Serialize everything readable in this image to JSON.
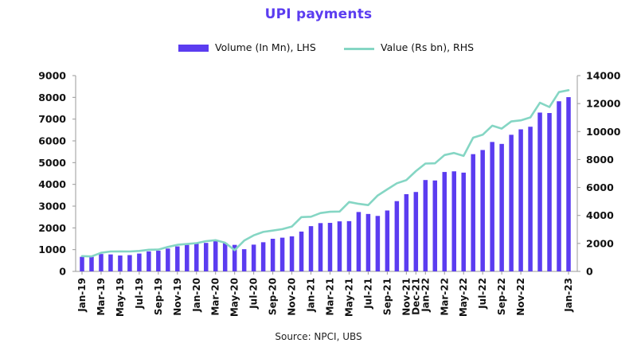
{
  "chart_data": {
    "type": "bar",
    "title": "UPI payments",
    "source": "Source: NPCI, UBS",
    "legend_position": "top-center",
    "grid": false,
    "colors": {
      "bars": "#5b3cf0",
      "line": "#85d6c4",
      "title": "#5b3cf0"
    },
    "series": [
      {
        "name": "Volume (In Mn), LHS",
        "type": "bar",
        "axis": "left",
        "values": [
          670,
          670,
          800,
          780,
          730,
          750,
          820,
          920,
          950,
          1050,
          1150,
          1220,
          1300,
          1310,
          1410,
          1310,
          1220,
          1020,
          1230,
          1340,
          1500,
          1550,
          1610,
          1830,
          2080,
          2220,
          2230,
          2300,
          2310,
          2730,
          2640,
          2550,
          2800,
          3230,
          3550,
          3650,
          4200,
          4180,
          4570,
          4600,
          4540,
          5390,
          5580,
          5950,
          5860,
          6280,
          6530,
          6650,
          7300,
          7280,
          7820,
          8010
        ]
      },
      {
        "name": "Value (Rs bn), RHS",
        "type": "line",
        "axis": "right",
        "values": [
          1090,
          1070,
          1330,
          1420,
          1430,
          1420,
          1460,
          1550,
          1560,
          1750,
          1900,
          1960,
          2020,
          2160,
          2230,
          2050,
          1520,
          2200,
          2580,
          2820,
          2920,
          3020,
          3210,
          3880,
          3910,
          4170,
          4260,
          4280,
          4960,
          4830,
          4740,
          5430,
          5870,
          6300,
          6530,
          7170,
          7710,
          7730,
          8320,
          8470,
          8260,
          9560,
          9770,
          10420,
          10210,
          10720,
          10800,
          11010,
          12060,
          11750,
          12820,
          12960
        ]
      }
    ],
    "x_tick_labels": [
      "Jan-19",
      "Mar-19",
      "May-19",
      "Jul-19",
      "Sep-19",
      "Nov-19",
      "Jan-20",
      "Mar-20",
      "May-20",
      "Jul-20",
      "Sep-20",
      "Nov-20",
      "Jan-21",
      "Mar-21",
      "May-21",
      "Jul-21",
      "Sep-21",
      "Nov-21",
      "Dec-21",
      "Jan-22",
      "Mar-22",
      "May-22",
      "Jul-22",
      "Sep-22",
      "Nov-22",
      "Jan-23"
    ],
    "y_left": {
      "min": 0,
      "max": 9000,
      "ticks": [
        "0",
        "1000",
        "2000",
        "3000",
        "4000",
        "5000",
        "6000",
        "7000",
        "8000",
        "9000"
      ]
    },
    "y_right": {
      "min": 0,
      "max": 14000,
      "ticks": [
        "0",
        "2000",
        "4000",
        "6000",
        "8000",
        "10000",
        "12000",
        "14000"
      ]
    }
  }
}
